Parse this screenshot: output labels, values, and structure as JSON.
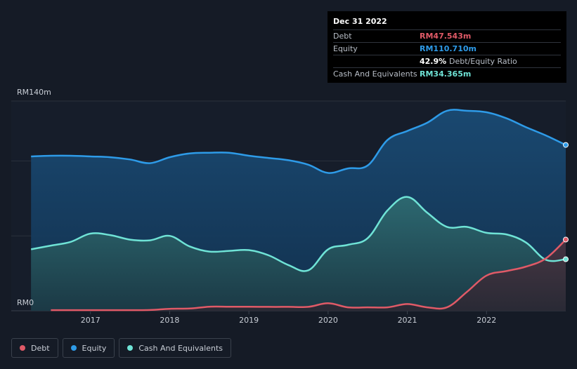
{
  "tooltip": {
    "date": "Dec 31 2022",
    "rows": [
      {
        "label": "Debt",
        "value": "RM47.543m",
        "color": "#e05a67"
      },
      {
        "label": "Equity",
        "value": "RM110.710m",
        "color": "#2e9be8"
      },
      {
        "label": "",
        "value": "42.9%",
        "sub": "Debt/Equity Ratio",
        "color": "#ffffff"
      },
      {
        "label": "Cash And Equivalents",
        "value": "RM34.365m",
        "color": "#6fe3d6"
      }
    ]
  },
  "legend": [
    {
      "label": "Debt",
      "color": "#e05a67"
    },
    {
      "label": "Equity",
      "color": "#2e9be8"
    },
    {
      "label": "Cash And Equivalents",
      "color": "#6fe3d6"
    }
  ],
  "chart_data": {
    "type": "area",
    "ylabel_top": "RM140m",
    "ylabel_bottom": "RM0",
    "ylim": [
      0,
      140
    ],
    "xlim": [
      2016.25,
      2023.0
    ],
    "xticks": [
      2017,
      2018,
      2019,
      2020,
      2021,
      2022
    ],
    "series": [
      {
        "name": "Equity",
        "color": "#2e9be8",
        "x": [
          2016.25,
          2016.5,
          2016.75,
          2017.0,
          2017.25,
          2017.5,
          2017.75,
          2018.0,
          2018.25,
          2018.5,
          2018.75,
          2019.0,
          2019.25,
          2019.5,
          2019.75,
          2020.0,
          2020.25,
          2020.5,
          2020.75,
          2021.0,
          2021.25,
          2021.5,
          2021.75,
          2022.0,
          2022.25,
          2022.5,
          2022.75,
          2023.0
        ],
        "values": [
          103,
          103.5,
          103.5,
          103,
          102.5,
          101,
          98.5,
          102.5,
          105,
          105.5,
          105.5,
          103.5,
          102,
          100.5,
          97.5,
          92,
          95,
          97,
          114,
          120,
          125.5,
          133.5,
          133.5,
          132.5,
          128.5,
          122.5,
          117,
          110.7
        ]
      },
      {
        "name": "Cash And Equivalents",
        "color": "#6fe3d6",
        "x": [
          2016.25,
          2016.5,
          2016.75,
          2017.0,
          2017.25,
          2017.5,
          2017.75,
          2018.0,
          2018.25,
          2018.5,
          2018.75,
          2019.0,
          2019.25,
          2019.5,
          2019.75,
          2020.0,
          2020.25,
          2020.5,
          2020.75,
          2021.0,
          2021.25,
          2021.5,
          2021.75,
          2022.0,
          2022.25,
          2022.5,
          2022.75,
          2023.0
        ],
        "values": [
          41,
          43.5,
          46,
          51.5,
          50.5,
          47.5,
          47,
          50,
          43,
          39.5,
          40,
          40.5,
          37,
          30.5,
          27,
          41,
          44,
          48.5,
          67,
          76,
          65.5,
          56,
          56,
          52,
          51,
          45.5,
          34,
          34.4
        ]
      },
      {
        "name": "Debt",
        "color": "#e05a67",
        "x": [
          2016.5,
          2016.75,
          2017.0,
          2017.25,
          2017.5,
          2017.75,
          2018.0,
          2018.25,
          2018.5,
          2018.75,
          2019.0,
          2019.25,
          2019.5,
          2019.75,
          2020.0,
          2020.25,
          2020.5,
          2020.75,
          2021.0,
          2021.25,
          2021.5,
          2021.75,
          2022.0,
          2022.25,
          2022.5,
          2022.75,
          2023.0
        ],
        "values": [
          0.4,
          0.4,
          0.4,
          0.4,
          0.4,
          0.5,
          1.3,
          1.5,
          2.7,
          2.7,
          2.7,
          2.6,
          2.6,
          2.6,
          5.0,
          2.3,
          2.3,
          2.3,
          4.5,
          2.3,
          2.3,
          12.5,
          23.5,
          26.5,
          29.5,
          35,
          47.5
        ]
      }
    ]
  }
}
